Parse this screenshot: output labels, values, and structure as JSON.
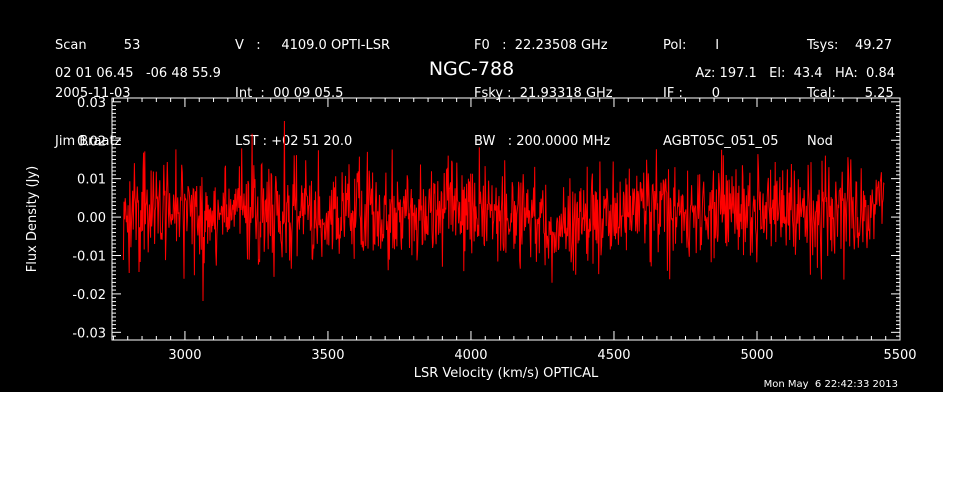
{
  "header": {
    "col1": [
      "Scan         53",
      "2005-11-03",
      "Jim Braatz"
    ],
    "col2": [
      "V   :     4109.0 OPTI-LSR",
      "Int  :  00 09 05.5",
      "LST : +02 51 20.0"
    ],
    "col3": [
      "F0   :  22.23508 GHz",
      "Fsky :  21.93318 GHz",
      "BW   : 200.0000 MHz"
    ],
    "col4": [
      "Pol:       I",
      "IF :       0",
      "AGBT05C_051_05"
    ],
    "col5": [
      "Tsys:    49.27",
      "Tcal:       5.25",
      "Nod"
    ]
  },
  "coords": "02 01 06.45   -06 48 55.9",
  "azel": "Az: 197.1   El:  43.4   HA:  0.84",
  "timestamp": "Mon May  6 22:42:33 2013",
  "chart_data": {
    "type": "line",
    "title": "NGC-788",
    "xlabel": "LSR Velocity (km/s) OPTICAL",
    "ylabel": "Flux Density (Jy)",
    "xlim": [
      2745,
      5500
    ],
    "ylim": [
      -0.032,
      0.031
    ],
    "xticks": [
      3000,
      3500,
      4000,
      4500,
      5000,
      5500
    ],
    "xtick_labels": [
      "3000",
      "3500",
      "4000",
      "4500",
      "5000",
      "5500"
    ],
    "yticks": [
      -0.03,
      -0.02,
      -0.01,
      0.0,
      0.01,
      0.02,
      0.03
    ],
    "ytick_labels": [
      "-0.03",
      "-0.02",
      "-0.01",
      "0.00",
      "0.01",
      "0.02",
      "0.03"
    ],
    "series": [
      {
        "color": "#ff0000",
        "x_start": 2785,
        "x_end": 5445,
        "mean_level": [
          [
            2785,
            -0.002
          ],
          [
            2850,
            0.003
          ],
          [
            3000,
            0.002
          ],
          [
            3150,
            0.0
          ],
          [
            3300,
            0.001
          ],
          [
            3450,
            0.0
          ],
          [
            3600,
            0.002
          ],
          [
            3750,
            0.001
          ],
          [
            3900,
            0.003
          ],
          [
            4050,
            0.002
          ],
          [
            4200,
            0.0
          ],
          [
            4300,
            -0.004
          ],
          [
            4400,
            -0.002
          ],
          [
            4550,
            0.001
          ],
          [
            4700,
            0.0
          ],
          [
            4850,
            0.002
          ],
          [
            5000,
            0.001
          ],
          [
            5150,
            0.003
          ],
          [
            5300,
            0.002
          ],
          [
            5445,
            0.001
          ]
        ],
        "noise_rms": 0.0065,
        "n_channels": 1320
      }
    ],
    "background": "#000000",
    "axis_color": "#ffffff"
  }
}
